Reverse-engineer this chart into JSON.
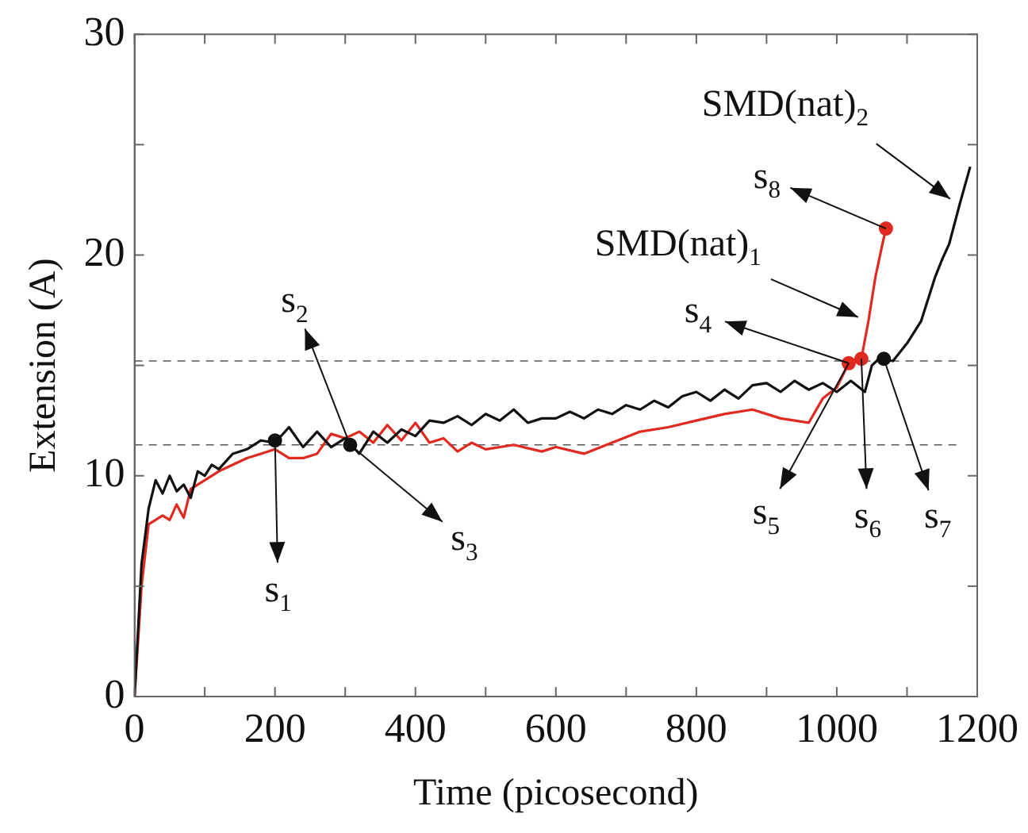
{
  "chart_data": {
    "type": "line",
    "xlabel": "Time (picosecond)",
    "ylabel": "Extension (A)",
    "xlim": [
      0,
      1200
    ],
    "xticks": [
      0,
      {
        "value": 100,
        "label": null
      },
      200,
      {
        "value": 300,
        "label": null
      },
      400,
      {
        "value": 500,
        "label": null
      },
      600,
      {
        "value": 700,
        "label": null
      },
      800,
      {
        "value": 900,
        "label": null
      },
      1000,
      {
        "value": 1100,
        "label": null
      },
      1200
    ],
    "ylim": [
      0,
      30
    ],
    "yticks": [
      0,
      {
        "value": 5,
        "label": null
      },
      10,
      {
        "value": 15,
        "label": null
      },
      20,
      {
        "value": 25,
        "label": null
      },
      30
    ],
    "grid": false,
    "legend": false,
    "marker": "none",
    "line_style": "solid",
    "ref_lines": [
      {
        "axis": "y",
        "value": 15.2,
        "color": "#555555",
        "line_style": "dashed"
      },
      {
        "axis": "y",
        "value": 11.4,
        "color": "#555555",
        "line_style": "dashed"
      }
    ],
    "series": [
      {
        "color": "#111111",
        "x": [
          0,
          10,
          20,
          30,
          40,
          50,
          60,
          70,
          80,
          90,
          100,
          110,
          120,
          140,
          160,
          180,
          200,
          220,
          240,
          260,
          280,
          300,
          320,
          340,
          360,
          380,
          400,
          420,
          440,
          460,
          480,
          500,
          520,
          540,
          560,
          580,
          600,
          620,
          640,
          660,
          680,
          700,
          720,
          740,
          760,
          780,
          800,
          820,
          840,
          860,
          880,
          900,
          920,
          940,
          960,
          980,
          1000,
          1020,
          1040,
          1050,
          1060,
          1080,
          1100,
          1110,
          1120,
          1140,
          1150,
          1160,
          1175,
          1190
        ],
        "values": [
          0,
          6,
          8.5,
          9.8,
          9.2,
          10,
          9.3,
          9.6,
          9,
          10.2,
          10,
          10.5,
          10.3,
          11,
          11.2,
          11.6,
          11.5,
          12.2,
          11.3,
          12,
          11.3,
          11.7,
          11,
          12,
          11.5,
          12.1,
          11.8,
          12.5,
          12.4,
          12.7,
          12.3,
          12.8,
          12.5,
          13,
          12.4,
          12.6,
          12.6,
          12.9,
          12.6,
          13,
          12.8,
          13.2,
          13,
          13.4,
          13.1,
          13.6,
          13.8,
          13.4,
          13.9,
          13.5,
          14.1,
          14.2,
          13.8,
          14.3,
          13.9,
          14.2,
          13.8,
          14.3,
          13.8,
          15,
          15.3,
          15.2,
          16,
          16.5,
          17,
          19,
          19.8,
          20.5,
          22.3,
          24
        ]
      },
      {
        "color": "#e0291f",
        "x": [
          0,
          10,
          20,
          30,
          40,
          50,
          60,
          70,
          80,
          100,
          120,
          140,
          160,
          180,
          200,
          220,
          240,
          260,
          280,
          300,
          320,
          340,
          360,
          380,
          400,
          420,
          440,
          460,
          480,
          500,
          540,
          580,
          600,
          640,
          680,
          720,
          760,
          800,
          840,
          880,
          920,
          960,
          980,
          1000,
          1017,
          1035,
          1045,
          1055,
          1065,
          1070
        ],
        "values": [
          0,
          5,
          7.8,
          8,
          8.2,
          8,
          8.7,
          8.1,
          9.4,
          9.8,
          10.2,
          10.5,
          10.8,
          11,
          11.2,
          10.8,
          10.8,
          11,
          11.9,
          11.7,
          12,
          11.5,
          12.3,
          11.6,
          12.4,
          11.5,
          11.7,
          11.1,
          11.5,
          11.2,
          11.4,
          11.1,
          11.3,
          11,
          11.5,
          12,
          12.2,
          12.5,
          12.8,
          13,
          12.6,
          12.4,
          13.5,
          14,
          15.1,
          15.3,
          17,
          19,
          20.5,
          21.2
        ]
      },
      {
        "type": "scatter",
        "color": "#111111",
        "marker": "circle",
        "x": [
          200,
          307,
          1067
        ],
        "values": [
          11.6,
          11.4,
          15.3
        ]
      },
      {
        "type": "scatter",
        "color": "#e0291f",
        "marker": "circle",
        "x": [
          1017,
          1035,
          1070
        ],
        "values": [
          15.1,
          15.3,
          21.2
        ]
      }
    ],
    "annotations": [
      {
        "text": "s$_{1}$",
        "x": 200,
        "y": 11.6
      },
      {
        "text": "s$_{2}$",
        "x": 307,
        "y": 11.4
      },
      {
        "text": "s$_{3}$",
        "x": 307,
        "y": 11.4
      },
      {
        "text": "s$_{4}$",
        "x": 1017,
        "y": 15.1
      },
      {
        "text": "s$_{5}$",
        "x": 1017,
        "y": 15.1
      },
      {
        "text": "s$_{6}$",
        "x": 1035,
        "y": 15.3
      },
      {
        "text": "s$_{7}$",
        "x": 1067,
        "y": 15.3
      },
      {
        "text": "s$_{8}$",
        "x": 1070,
        "y": 21.2
      },
      {
        "text": "SMD(nat)$_{1}$",
        "x": 1045,
        "y": 17
      },
      {
        "text": "SMD(nat)$_{2}$",
        "x": 1175,
        "y": 22.3
      }
    ]
  }
}
